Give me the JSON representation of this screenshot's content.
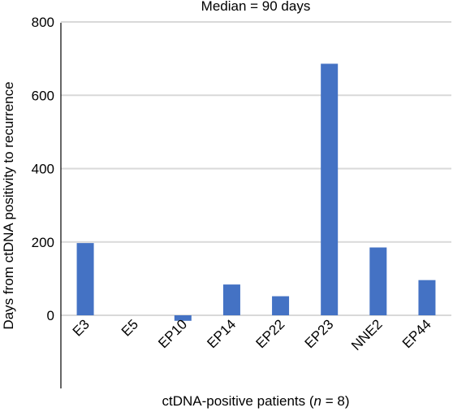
{
  "chart_data": {
    "type": "bar",
    "title": "Median = 90 days",
    "ylabel": "Days from ctDNA positivity to recurrence",
    "xlabel_prefix": "ctDNA-positive patients (",
    "xlabel_n": "n",
    "xlabel_suffix": " = 8)",
    "categories": [
      "E3",
      "E5",
      "EP10",
      "EP14",
      "EP22",
      "EP23",
      "NNE2",
      "EP44"
    ],
    "values": [
      197,
      0,
      -15,
      84,
      52,
      686,
      185,
      96
    ],
    "ylim": [
      -200,
      800
    ],
    "yticks": [
      0,
      200,
      400,
      600,
      800
    ],
    "grid": true,
    "bar_color": "#4472c4",
    "grid_color": "#d9d9d9"
  }
}
